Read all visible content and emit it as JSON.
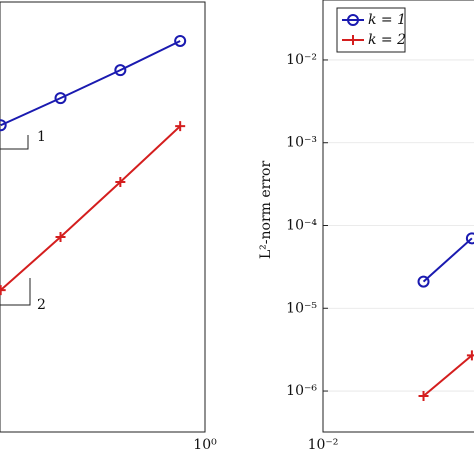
{
  "chart_data": [
    {
      "type": "line",
      "log_x": true,
      "log_y": true,
      "grid": true,
      "xlim": [
        0.093,
        1
      ],
      "ylim": [
        2e-05,
        1
      ],
      "xticks": [
        {
          "value": 1,
          "label": "10⁰"
        }
      ],
      "annotations": [
        "1",
        "2"
      ],
      "series": [
        {
          "name": "k = 1",
          "color": "#1a1ab0",
          "marker": "circle",
          "x": [
            0.09375,
            0.1875,
            0.375,
            0.75
          ],
          "values": [
            0.045,
            0.089,
            0.18,
            0.375
          ]
        },
        {
          "name": "k = 2",
          "color": "#d41e1e",
          "marker": "plus",
          "x": [
            0.09375,
            0.1875,
            0.375,
            0.75
          ],
          "values": [
            0.00071,
            0.0027,
            0.0108,
            0.044
          ]
        }
      ]
    },
    {
      "type": "line",
      "log_x": true,
      "log_y": true,
      "grid": true,
      "xlim": [
        0.01,
        1
      ],
      "ylim": [
        3.2e-07,
        0.053
      ],
      "ylabel": "L²-norm error",
      "xticks": [
        {
          "value": 0.01,
          "label": "10⁻²"
        }
      ],
      "yticks": [
        {
          "value": 0.01,
          "label": "10⁻²"
        },
        {
          "value": 0.001,
          "label": "10⁻³"
        },
        {
          "value": 0.0001,
          "label": "10⁻⁴"
        },
        {
          "value": 1e-05,
          "label": "10⁻⁵"
        },
        {
          "value": 1e-06,
          "label": "10⁻⁶"
        }
      ],
      "legend": "upper left",
      "legend_entries": true,
      "series": [
        {
          "name": "k = 1",
          "color": "#1a1ab0",
          "marker": "circle",
          "x": [
            0.032,
            0.056
          ],
          "values": [
            2.1e-05,
            7e-05
          ]
        },
        {
          "name": "k = 2",
          "color": "#d41e1e",
          "marker": "plus",
          "x": [
            0.032,
            0.056
          ],
          "values": [
            8.7e-07,
            2.7e-06
          ]
        }
      ]
    }
  ]
}
